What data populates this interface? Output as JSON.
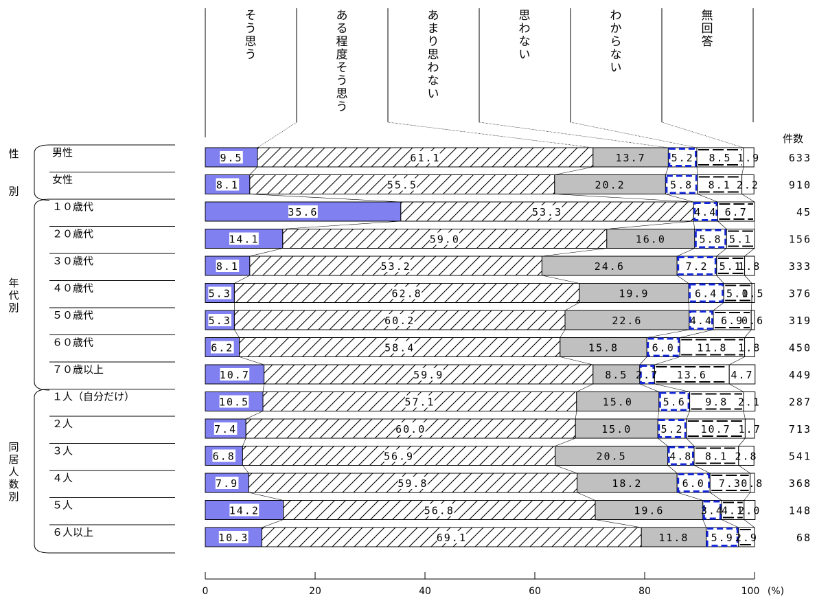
{
  "chart_data": {
    "type": "bar",
    "stacked": true,
    "orientation": "horizontal",
    "unit_label": "(%)",
    "count_header": "件数",
    "xlim": [
      0,
      100
    ],
    "x_ticks": [
      "0",
      "20",
      "40",
      "60",
      "80",
      "100"
    ],
    "series": [
      {
        "name": "そう思う",
        "color": "#8080f0"
      },
      {
        "name": "ある程度そう思う",
        "color": "#ffffff"
      },
      {
        "name": "あまり思わない",
        "color": "#c0c0c0"
      },
      {
        "name": "思わない",
        "color": "#ffffff"
      },
      {
        "name": "わからない",
        "color": "#ffffff"
      },
      {
        "name": "無回答",
        "color": "#ffffff"
      }
    ],
    "groups": [
      {
        "label": "性別",
        "rows": [
          0,
          1
        ]
      },
      {
        "label": "年代別",
        "rows": [
          2,
          8
        ]
      },
      {
        "label": "同居人数別",
        "rows": [
          9,
          14
        ]
      }
    ],
    "categories": [
      {
        "label": "男性",
        "values": [
          9.5,
          61.1,
          13.7,
          5.2,
          8.5,
          1.9
        ],
        "labels": [
          "9.5",
          "61.1",
          "13.7",
          "5.2",
          "8.5",
          "1.9"
        ],
        "n": "633"
      },
      {
        "label": "女性",
        "values": [
          8.1,
          55.5,
          20.2,
          5.8,
          8.1,
          2.2
        ],
        "labels": [
          "8.1",
          "55.5",
          "20.2",
          "5.8",
          "8.1",
          "2.2"
        ],
        "n": "910"
      },
      {
        "label": "１０歳代",
        "values": [
          35.6,
          53.3,
          0.0,
          4.4,
          6.7,
          0.0
        ],
        "labels": [
          "35.6",
          "53.3",
          "",
          "4.4",
          "6.7",
          ""
        ],
        "n": "45"
      },
      {
        "label": "２０歳代",
        "values": [
          14.1,
          59.0,
          16.0,
          5.8,
          5.1,
          0.0
        ],
        "labels": [
          "14.1",
          "59.0",
          "16.0",
          "5.8",
          "5.1",
          ""
        ],
        "n": "156"
      },
      {
        "label": "３０歳代",
        "values": [
          8.1,
          53.2,
          24.6,
          7.2,
          5.1,
          1.8
        ],
        "labels": [
          "8.1",
          "53.2",
          "24.6",
          "7.2",
          "5.1",
          "1.8"
        ],
        "n": "333"
      },
      {
        "label": "４０歳代",
        "values": [
          5.3,
          62.8,
          19.9,
          6.4,
          5.1,
          0.5
        ],
        "labels": [
          "5.3",
          "62.8",
          "19.9",
          "6.4",
          "5.1",
          "0.5"
        ],
        "n": "376"
      },
      {
        "label": "５０歳代",
        "values": [
          5.3,
          60.2,
          22.6,
          4.4,
          6.9,
          0.6
        ],
        "labels": [
          "5.3",
          "60.2",
          "22.6",
          "4.4",
          "6.9",
          "0.6"
        ],
        "n": "319"
      },
      {
        "label": "６０歳代",
        "values": [
          6.2,
          58.4,
          15.8,
          6.0,
          11.8,
          1.8
        ],
        "labels": [
          "6.2",
          "58.4",
          "15.8",
          "6.0",
          "11.8",
          "1.8"
        ],
        "n": "450"
      },
      {
        "label": "７０歳以上",
        "values": [
          10.7,
          59.9,
          8.5,
          2.7,
          13.6,
          4.7
        ],
        "labels": [
          "10.7",
          "59.9",
          "8.5",
          "2.7",
          "13.6",
          "4.7"
        ],
        "n": "449"
      },
      {
        "label": "１人（自分だけ）",
        "values": [
          10.5,
          57.1,
          15.0,
          5.6,
          9.8,
          2.1
        ],
        "labels": [
          "10.5",
          "57.1",
          "15.0",
          "5.6",
          "9.8",
          "2.1"
        ],
        "n": "287"
      },
      {
        "label": "２人",
        "values": [
          7.4,
          60.0,
          15.0,
          5.2,
          10.7,
          1.7
        ],
        "labels": [
          "7.4",
          "60.0",
          "15.0",
          "5.2",
          "10.7",
          "1.7"
        ],
        "n": "713"
      },
      {
        "label": "３人",
        "values": [
          6.8,
          56.9,
          20.5,
          4.8,
          8.1,
          2.8
        ],
        "labels": [
          "6.8",
          "56.9",
          "20.5",
          "4.8",
          "8.1",
          "2.8"
        ],
        "n": "541"
      },
      {
        "label": "４人",
        "values": [
          7.9,
          59.8,
          18.2,
          6.0,
          7.3,
          0.8
        ],
        "labels": [
          "7.9",
          "59.8",
          "18.2",
          "6.0",
          "7.3",
          "0.8"
        ],
        "n": "368"
      },
      {
        "label": "５人",
        "values": [
          14.2,
          56.8,
          19.6,
          3.4,
          4.1,
          2.0
        ],
        "labels": [
          "14.2",
          "56.8",
          "19.6",
          "3.4",
          "4.1",
          "2.0"
        ],
        "n": "148"
      },
      {
        "label": "６人以上",
        "values": [
          10.3,
          69.1,
          11.8,
          5.9,
          2.9,
          0.0
        ],
        "labels": [
          "10.3",
          "69.1",
          "11.8",
          "5.9",
          "2.9",
          ""
        ],
        "n": "68"
      }
    ]
  }
}
